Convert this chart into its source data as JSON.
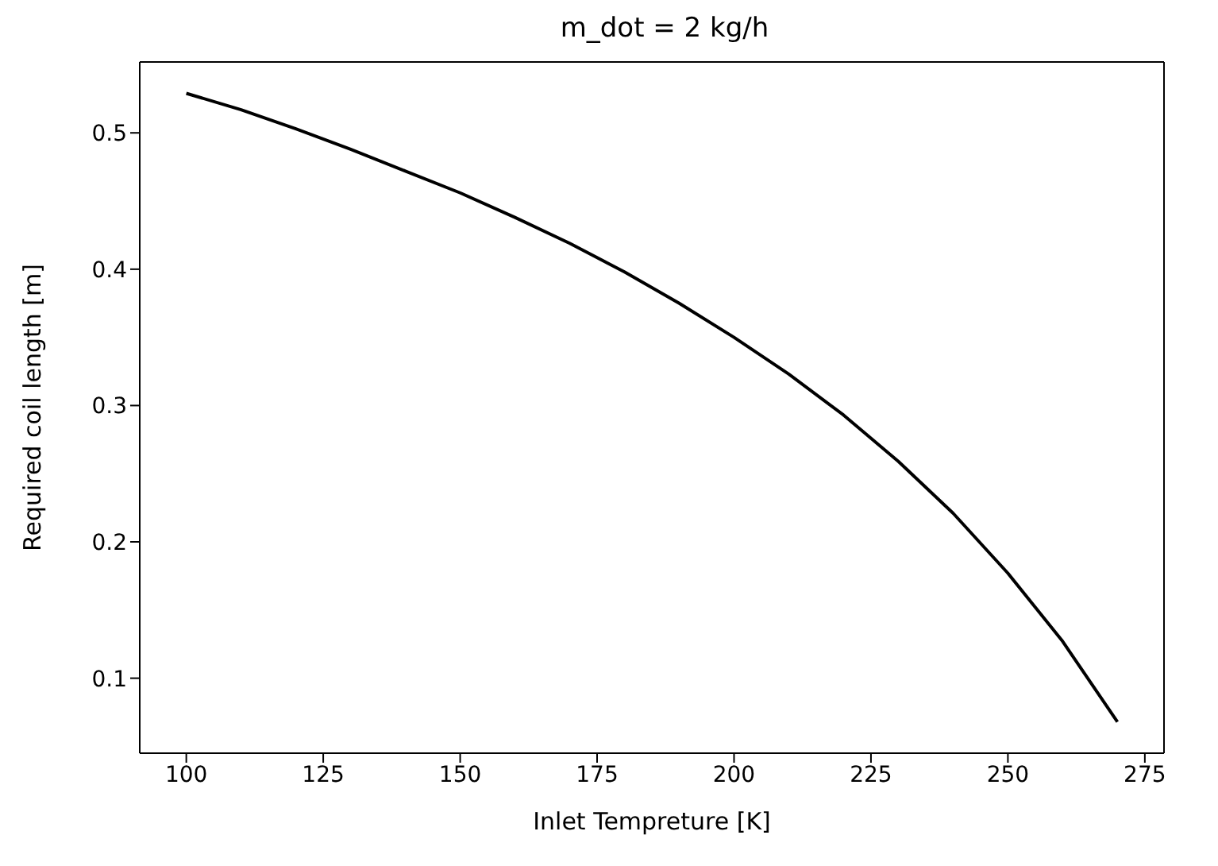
{
  "chart_data": {
    "type": "line",
    "title": "m_dot = 2 kg/h",
    "xlabel": "Inlet Tempreture [K]",
    "ylabel": "Required coil length [m]",
    "x": [
      100,
      110,
      120,
      130,
      140,
      150,
      160,
      170,
      180,
      190,
      200,
      210,
      220,
      230,
      240,
      250,
      260,
      270
    ],
    "series": [
      {
        "color": "#000000",
        "values": [
          0.529,
          0.517,
          0.503,
          0.488,
          0.472,
          0.456,
          0.438,
          0.419,
          0.398,
          0.375,
          0.35,
          0.323,
          0.293,
          0.259,
          0.221,
          0.177,
          0.127,
          0.068
        ]
      }
    ],
    "xlim": [
      91.5,
      278.5
    ],
    "xticks": [
      100,
      125,
      150,
      175,
      200,
      225,
      250,
      275
    ],
    "ylim": [
      0.045,
      0.552
    ],
    "yticks": [
      0.1,
      0.2,
      0.3,
      0.4,
      0.5
    ],
    "grid": false,
    "legend": false,
    "marker": "none",
    "line_style": "solid"
  }
}
